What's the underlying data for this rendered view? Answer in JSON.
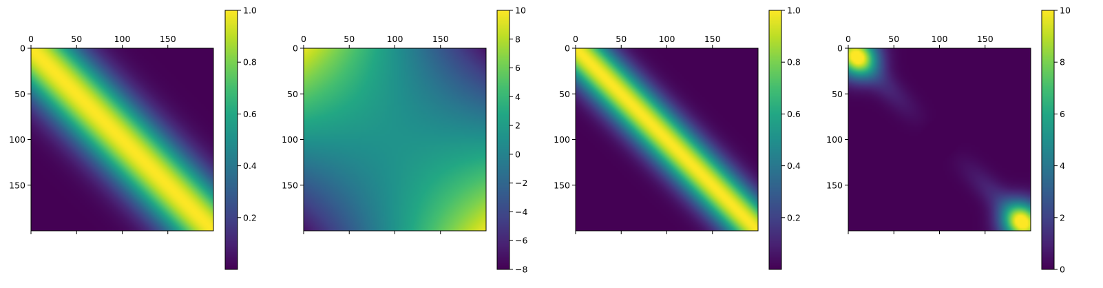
{
  "chart_data": [
    {
      "type": "heatmap",
      "matrix_size": 200,
      "x_ticks": [
        0,
        50,
        100,
        150
      ],
      "y_ticks": [
        0,
        50,
        100,
        150
      ],
      "x_tick_labels": [
        "0",
        "50",
        "100",
        "150"
      ],
      "y_tick_labels": [
        "0",
        "50",
        "100",
        "150"
      ],
      "colorbar": {
        "vmin": 0.0,
        "vmax": 1.0,
        "ticks": [
          0.2,
          0.4,
          0.6,
          0.8,
          1.0
        ],
        "tick_labels": [
          "0.2",
          "0.4",
          "0.6",
          "0.8",
          "1.0"
        ]
      },
      "field": {
        "kind": "diagonal-band",
        "formula": "exp(-((i-j)/50)^2)"
      }
    },
    {
      "type": "heatmap",
      "matrix_size": 200,
      "x_ticks": [
        0,
        50,
        100,
        150
      ],
      "y_ticks": [
        0,
        50,
        100,
        150
      ],
      "x_tick_labels": [
        "0",
        "50",
        "100",
        "150"
      ],
      "y_tick_labels": [
        "0",
        "50",
        "100",
        "150"
      ],
      "colorbar": {
        "vmin": -8,
        "vmax": 10,
        "ticks": [
          -8,
          -6,
          -4,
          -2,
          0,
          2,
          4,
          6,
          8,
          10
        ],
        "tick_labels": [
          "−8",
          "−6",
          "−4",
          "−2",
          "0",
          "2",
          "4",
          "6",
          "8",
          "10"
        ]
      },
      "field": {
        "kind": "antisymmetric-gradient",
        "corner_top_left": 9.5,
        "corner_bottom_right": 9.5,
        "corner_top_right": -7,
        "corner_bottom_left": -7,
        "center": 1.5
      }
    },
    {
      "type": "heatmap",
      "matrix_size": 200,
      "x_ticks": [
        0,
        50,
        100,
        150
      ],
      "y_ticks": [
        0,
        50,
        100,
        150
      ],
      "x_tick_labels": [
        "0",
        "50",
        "100",
        "150"
      ],
      "y_tick_labels": [
        "0",
        "50",
        "100",
        "150"
      ],
      "colorbar": {
        "vmin": 0.0,
        "vmax": 1.0,
        "ticks": [
          0.2,
          0.4,
          0.6,
          0.8,
          1.0
        ],
        "tick_labels": [
          "0.2",
          "0.4",
          "0.6",
          "0.8",
          "1.0"
        ]
      },
      "field": {
        "kind": "diagonal-band",
        "formula": "exp(-((i-j)/35)^2)"
      }
    },
    {
      "type": "heatmap",
      "matrix_size": 200,
      "x_ticks": [
        0,
        50,
        100,
        150
      ],
      "y_ticks": [
        0,
        50,
        100,
        150
      ],
      "x_tick_labels": [
        "0",
        "50",
        "100",
        "150"
      ],
      "y_tick_labels": [
        "0",
        "50",
        "100",
        "150"
      ],
      "colorbar": {
        "vmin": 0,
        "vmax": 10,
        "ticks": [
          0,
          2,
          4,
          6,
          8,
          10
        ],
        "tick_labels": [
          "0",
          "2",
          "4",
          "6",
          "8",
          "10"
        ]
      },
      "field": {
        "kind": "diagonal-peaks",
        "peak_value": 9,
        "peak_centers": [
          10,
          190
        ]
      }
    }
  ]
}
